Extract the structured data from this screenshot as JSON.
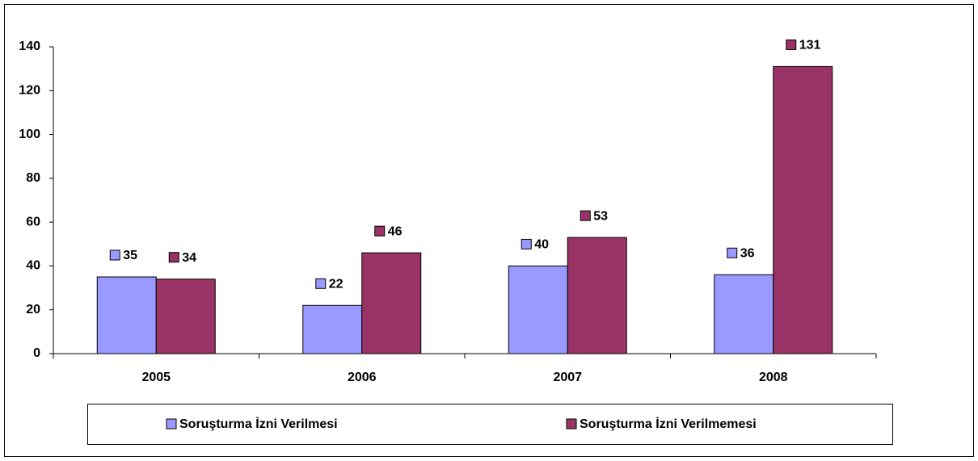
{
  "chart_data": {
    "type": "bar",
    "categories": [
      "2005",
      "2006",
      "2007",
      "2008"
    ],
    "series": [
      {
        "name": "Soruşturma İzni Verilmesi",
        "color": "#9999ff",
        "values": [
          35,
          22,
          40,
          36
        ]
      },
      {
        "name": "Soruşturma İzni Verilmemesi",
        "color": "#993366",
        "values": [
          34,
          46,
          53,
          131
        ]
      }
    ],
    "ylim": [
      0,
      140
    ],
    "yticks": [
      0,
      20,
      40,
      60,
      80,
      100,
      120,
      140
    ],
    "grid": false,
    "legend": "bottom"
  }
}
